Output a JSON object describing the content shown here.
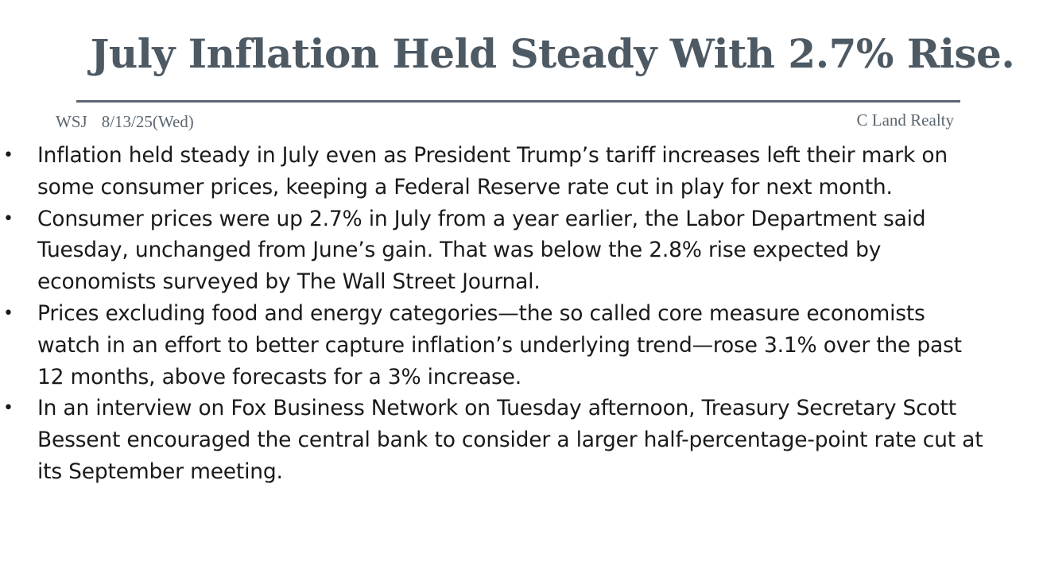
{
  "slide": {
    "title": "July Inflation Held Steady With 2.7% Rise.",
    "source": "WSJ",
    "date": "8/13/25(Wed)",
    "publisher": "C Land Realty",
    "bullets": [
      "Inflation held steady in July even as President Trump’s tariff increases left their mark on some consumer prices, keeping a Federal Reserve rate cut in play for next month.",
      "Consumer prices were up 2.7% in July from a year earlier, the Labor Department said Tuesday, unchanged from June’s gain. That was below the 2.8% rise expected by economists surveyed by The Wall Street Journal.",
      "Prices excluding food and energy categories—the so called core measure economists watch in an effort to better capture inflation’s underlying trend—rose 3.1% over the past 12 months, above forecasts for a 3% increase.",
      "In an interview on Fox Business Network on Tuesday afternoon, Treasury Secretary Scott Bessent encouraged the central bank to consider a larger half-percentage-point rate cut at its September meeting."
    ],
    "bullet_symbol": "•",
    "colors": {
      "title": "#4d5963",
      "rule": "#5c6670",
      "meta": "#5c6670",
      "body_text": "#1a1a1a",
      "background": "#ffffff"
    }
  }
}
